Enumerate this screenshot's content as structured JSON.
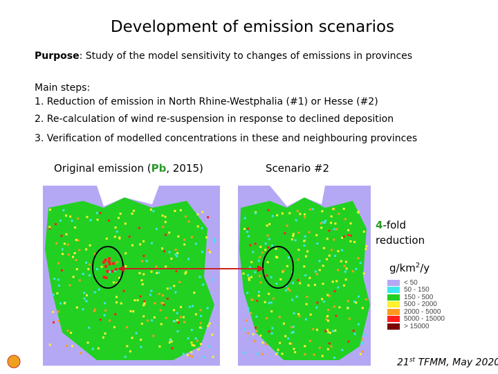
{
  "title": "Development of emission scenarios",
  "purpose": {
    "label": "Purpose",
    "text": ": Study of the model sensitivity to changes of emissions in provinces"
  },
  "main_steps": {
    "heading": "Main steps:",
    "items": [
      "1. Reduction of emission in North Rhine-Westphalia (#1) or Hesse (#2)",
      "2. Re-calculation of wind re-suspension in response to declined deposition",
      "3. Verification of modelled concentrations in these and neighbouring provinces"
    ]
  },
  "maps": [
    {
      "caption_parts": [
        "Original emission (",
        "Pb",
        ", 2015)"
      ]
    },
    {
      "caption": "Scenario #2"
    }
  ],
  "note": {
    "factor": "4",
    "suffix": "-fold",
    "text": "reduction"
  },
  "legend": {
    "unit_parts": [
      "g/km",
      "2",
      "/y"
    ],
    "items": [
      {
        "label": "< 50",
        "color": "#b4a8f4"
      },
      {
        "label": "50 - 150",
        "color": "#3ee6f0"
      },
      {
        "label": "150 - 500",
        "color": "#22d022"
      },
      {
        "label": "500 - 2000",
        "color": "#fff030"
      },
      {
        "label": "2000 - 5000",
        "color": "#ff9a1e"
      },
      {
        "label": "5000 - 15000",
        "color": "#ff1e1e"
      },
      {
        "label": "> 15000",
        "color": "#7a0000"
      }
    ]
  },
  "footer": {
    "parts": [
      "21",
      "st",
      " TFMM, May 2020"
    ]
  }
}
